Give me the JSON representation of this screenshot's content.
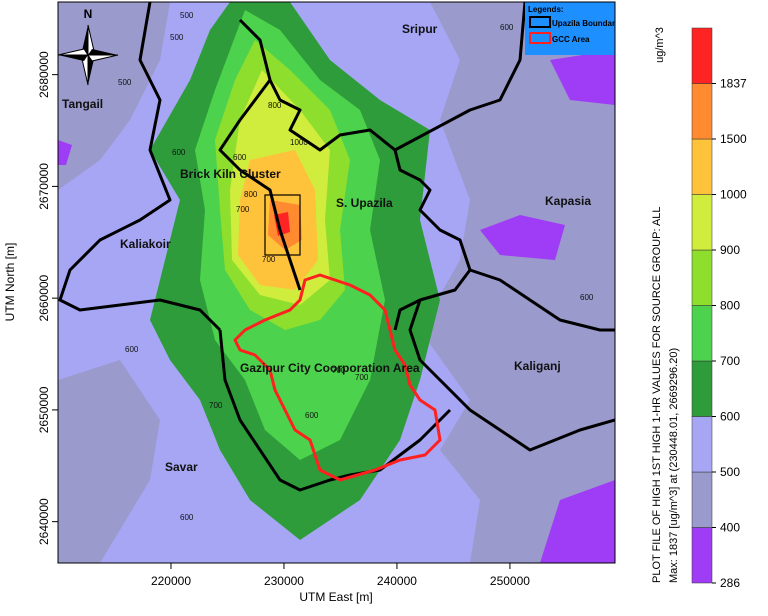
{
  "map": {
    "xlim": [
      210000,
      259300
    ],
    "ylim": [
      2636300,
      2686500
    ],
    "xticks": [
      220000,
      230000,
      240000,
      250000
    ],
    "yticks": [
      2640000,
      2650000,
      2660000,
      2670000,
      2680000
    ],
    "x_title": "UTM East [m]",
    "y_title": "UTM North [m]",
    "north": "N",
    "legend": {
      "title": "Legends:",
      "items": [
        {
          "label": "Upazila Boundary",
          "color": "#000000"
        },
        {
          "label": "GCC Area",
          "color": "#ff2020"
        }
      ],
      "color": "#1e8fff"
    },
    "places": [
      "Tangail",
      "Sripur",
      "Brick Kiln Cluster",
      "S. Upazila",
      "Kapasia",
      "Kaliakoir",
      "Gazipur City Coorporation Area",
      "Kaliganj",
      "Savar"
    ],
    "contour_labels": [
      500,
      500,
      600,
      700,
      800,
      1000,
      600,
      700,
      800,
      600,
      700,
      600,
      700,
      600,
      500,
      600,
      700,
      600
    ]
  },
  "colorbar": {
    "unit": "ug/m^3",
    "title": "PLOT FILE OF HIGH 1ST HIGH 1-HR VALUES FOR SOURCE GROUP: ALL",
    "subtitle": "Max:  1837  [ug/m^3]  at  (230448.01, 2669296.20)",
    "levels": [
      286,
      400,
      500,
      600,
      700,
      800,
      900,
      1000,
      1500,
      1837
    ],
    "colors": [
      "#9f3cf5",
      "#9a9acc",
      "#a6a6f5",
      "#2e9c3a",
      "#4cd24c",
      "#8ede2e",
      "#d0ec3c",
      "#ffc23b",
      "#ff8a30",
      "#ff2424"
    ]
  }
}
